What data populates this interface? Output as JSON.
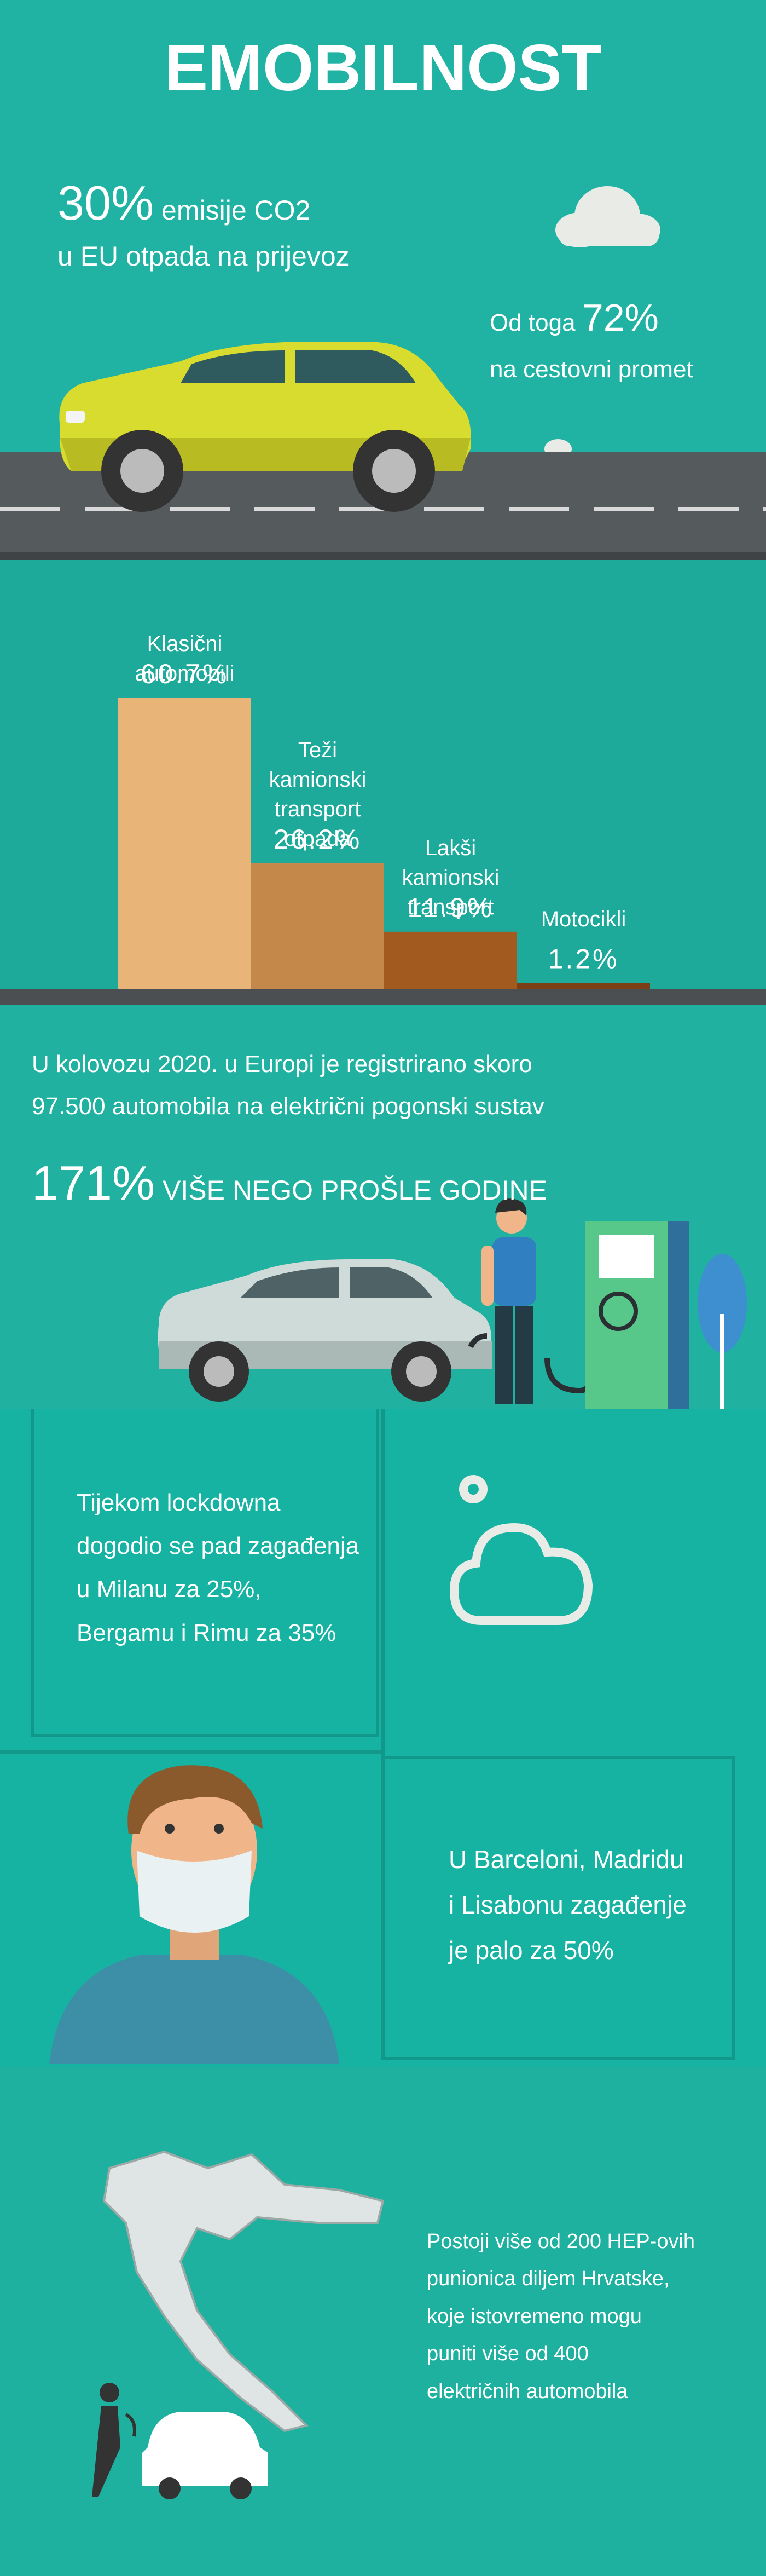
{
  "title": "EMOBILNOST",
  "intro": {
    "percent": "30%",
    "line1": "emisije CO2",
    "line2": "u EU otpada na prijevoz",
    "road_prefix": "Od toga",
    "road_percent": "72%",
    "road_line": "na cestovni promet"
  },
  "chart_data": {
    "type": "bar",
    "categories": [
      "Klasični automobili",
      "Teži kamionski transport otpada",
      "Lakši kamionski transport",
      "Motocikli"
    ],
    "series": [
      {
        "name": null,
        "colors": [
          "#e8b477",
          "#c4894a",
          "#a35a1f",
          "#7a3f15"
        ],
        "values": [
          60.7,
          26.2,
          11.9,
          1.2
        ],
        "value_labels": [
          "60.7%",
          "26.2%",
          "11.9%",
          "1.2%"
        ]
      }
    ],
    "ylim": [
      0,
      61
    ]
  },
  "registration": {
    "lines": [
      "U kolovozu 2020. u Europi je registrirano skoro",
      "97.500 automobila na električni pogonski sustav"
    ],
    "percent": "171%",
    "percent_text": "VIŠE NEGO PROŠLE GODINE"
  },
  "lockdown": {
    "lines": [
      "Tijekom lockdowna",
      "dogodio se pad zagađenja",
      "u Milanu za 25%,",
      "Bergamu i Rimu za 35%"
    ]
  },
  "barcelona": {
    "lines": [
      "U Barceloni, Madridu",
      "i Lisabonu zagađenje",
      "je palo za 50%"
    ]
  },
  "croatia": {
    "lines": [
      "Postoji više od 200 HEP-ovih",
      "punionica diljem Hrvatske,",
      "koje istovremeno mogu",
      "puniti više od 400",
      "električnih automobila"
    ]
  }
}
